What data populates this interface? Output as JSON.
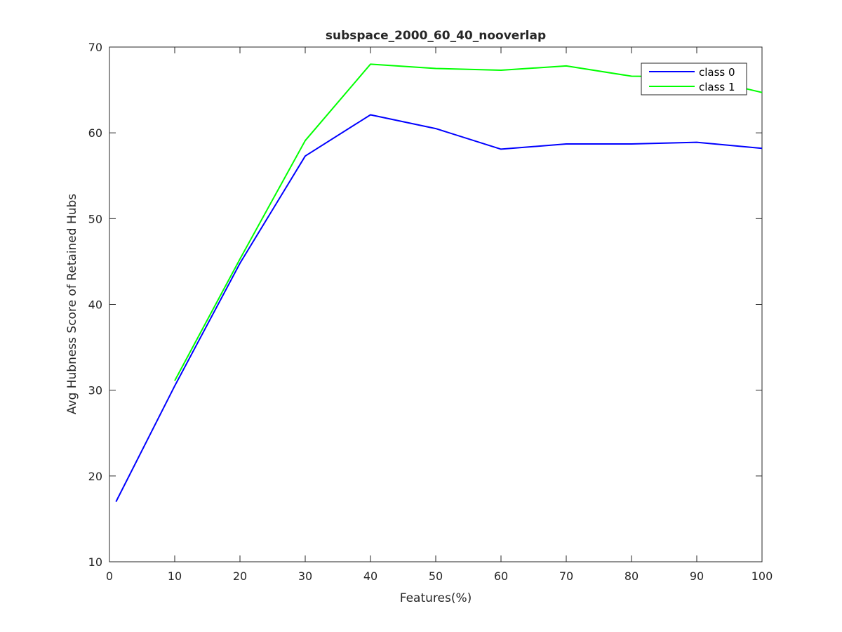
{
  "chart_data": {
    "type": "line",
    "title": "subspace_2000_60_40_nooverlap",
    "xlabel": "Features(%)",
    "ylabel": "Avg Hubness Score of Retained Hubs",
    "xlim": [
      0,
      100
    ],
    "ylim": [
      10,
      70
    ],
    "xticks": [
      0,
      10,
      20,
      30,
      40,
      50,
      60,
      70,
      80,
      90,
      100
    ],
    "yticks": [
      10,
      20,
      30,
      40,
      50,
      60,
      70
    ],
    "grid": false,
    "legend_position": "top-right",
    "series": [
      {
        "name": "class 0",
        "color": "#0000ff",
        "x": [
          1,
          10,
          20,
          30,
          40,
          50,
          60,
          70,
          80,
          90,
          100
        ],
        "y": [
          17.0,
          30.5,
          44.8,
          57.3,
          62.1,
          60.5,
          58.1,
          58.7,
          58.7,
          58.9,
          58.2
        ]
      },
      {
        "name": "class 1",
        "color": "#00ff00",
        "x": [
          10,
          20,
          30,
          40,
          50,
          60,
          70,
          80,
          90,
          100
        ],
        "y": [
          31.1,
          45.3,
          59.1,
          68.0,
          67.5,
          67.3,
          67.8,
          66.6,
          66.5,
          64.7
        ]
      }
    ]
  }
}
